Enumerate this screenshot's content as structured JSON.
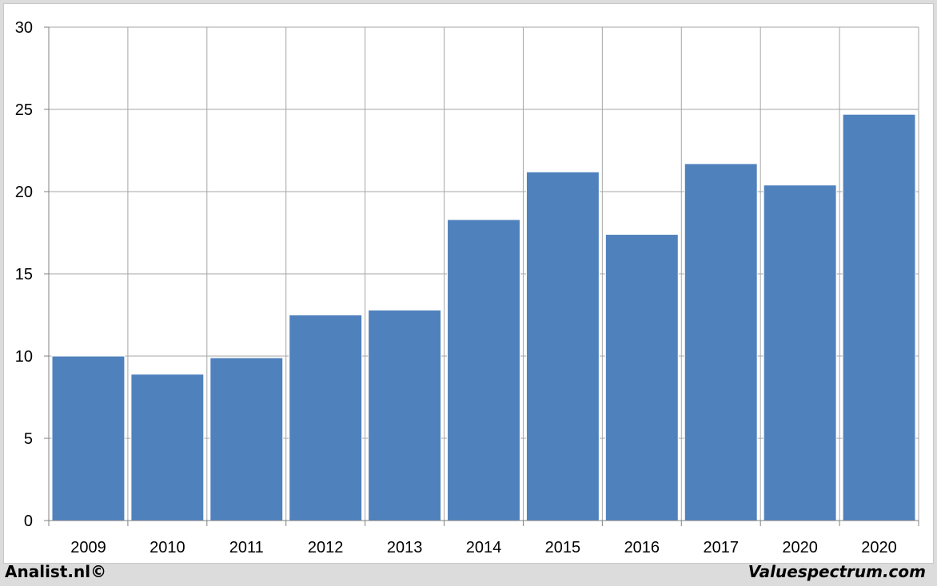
{
  "chart_data": {
    "type": "bar",
    "categories": [
      "2009",
      "2010",
      "2011",
      "2012",
      "2013",
      "2014",
      "2015",
      "2016",
      "2017",
      "2020",
      "2020"
    ],
    "values": [
      10.0,
      8.9,
      9.9,
      12.5,
      12.8,
      18.3,
      21.2,
      17.4,
      21.7,
      20.4,
      24.7
    ],
    "title": "",
    "xlabel": "",
    "ylabel": "",
    "ylim": [
      0,
      30
    ],
    "yticks": [
      "0",
      "5",
      "10",
      "15",
      "20",
      "25",
      "30"
    ],
    "grid": true,
    "bar_color": "#4f81bd",
    "grid_color": "#a6a6a6"
  },
  "footer": {
    "left": "Analist.nl©",
    "right": "Valuespectrum.com"
  }
}
